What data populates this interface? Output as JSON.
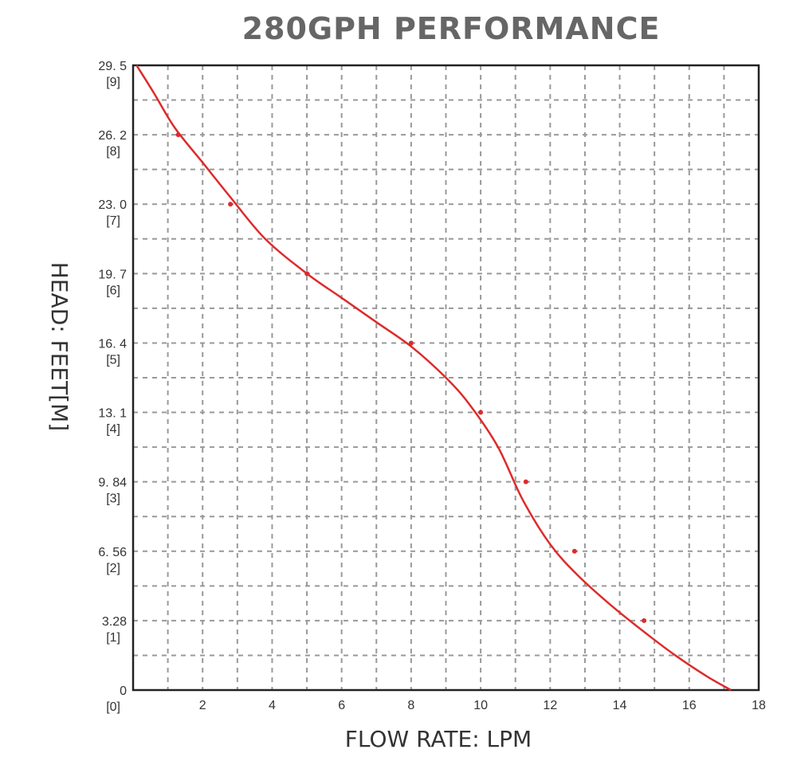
{
  "chart_data": {
    "type": "line",
    "title": "280GPH PERFORMANCE",
    "xlabel": "FLOW RATE: LPM",
    "ylabel": "HEAD: FEET[M]",
    "xlim": [
      0,
      18
    ],
    "ylim": [
      0,
      9
    ],
    "grid": true,
    "x_ticks": [
      {
        "value": 2,
        "label": "2"
      },
      {
        "value": 4,
        "label": "4"
      },
      {
        "value": 6,
        "label": "6"
      },
      {
        "value": 8,
        "label": "8"
      },
      {
        "value": 10,
        "label": "10"
      },
      {
        "value": 12,
        "label": "12"
      },
      {
        "value": 14,
        "label": "14"
      },
      {
        "value": 16,
        "label": "16"
      },
      {
        "value": 18,
        "label": "18"
      }
    ],
    "y_ticks": [
      {
        "value": 0,
        "feet": "0",
        "meters": "[0]"
      },
      {
        "value": 1,
        "feet": "3.28",
        "meters": "[1]"
      },
      {
        "value": 2,
        "feet": "6. 56",
        "meters": "[2]"
      },
      {
        "value": 3,
        "feet": "9. 84",
        "meters": "[3]"
      },
      {
        "value": 4,
        "feet": "13. 1",
        "meters": "[4]"
      },
      {
        "value": 5,
        "feet": "16. 4",
        "meters": "[5]"
      },
      {
        "value": 6,
        "feet": "19. 7",
        "meters": "[6]"
      },
      {
        "value": 7,
        "feet": "23. 0",
        "meters": "[7]"
      },
      {
        "value": 8,
        "feet": "26. 2",
        "meters": "[8]"
      },
      {
        "value": 9,
        "feet": "29. 5",
        "meters": "[9]"
      }
    ],
    "series": [
      {
        "color": "#dd2b2b",
        "curve": [
          {
            "x": 0.1,
            "y": 9.0
          },
          {
            "x": 0.6,
            "y": 8.6
          },
          {
            "x": 1.2,
            "y": 8.1
          },
          {
            "x": 2.0,
            "y": 7.6
          },
          {
            "x": 2.8,
            "y": 7.1
          },
          {
            "x": 3.8,
            "y": 6.5
          },
          {
            "x": 5.0,
            "y": 6.0
          },
          {
            "x": 6.0,
            "y": 5.65
          },
          {
            "x": 7.0,
            "y": 5.3
          },
          {
            "x": 8.0,
            "y": 4.95
          },
          {
            "x": 9.0,
            "y": 4.5
          },
          {
            "x": 9.7,
            "y": 4.1
          },
          {
            "x": 10.5,
            "y": 3.5
          },
          {
            "x": 11.2,
            "y": 2.75
          },
          {
            "x": 12.0,
            "y": 2.1
          },
          {
            "x": 12.8,
            "y": 1.65
          },
          {
            "x": 13.8,
            "y": 1.2
          },
          {
            "x": 14.8,
            "y": 0.8
          },
          {
            "x": 15.6,
            "y": 0.5
          },
          {
            "x": 16.5,
            "y": 0.2
          },
          {
            "x": 17.2,
            "y": 0.0
          }
        ],
        "markers": [
          {
            "x": 1.3,
            "y": 8.0
          },
          {
            "x": 2.8,
            "y": 7.0
          },
          {
            "x": 5.0,
            "y": 6.0
          },
          {
            "x": 8.0,
            "y": 5.0
          },
          {
            "x": 10.0,
            "y": 4.0
          },
          {
            "x": 11.3,
            "y": 3.0
          },
          {
            "x": 12.7,
            "y": 2.0
          },
          {
            "x": 14.7,
            "y": 1.0
          }
        ]
      }
    ]
  }
}
